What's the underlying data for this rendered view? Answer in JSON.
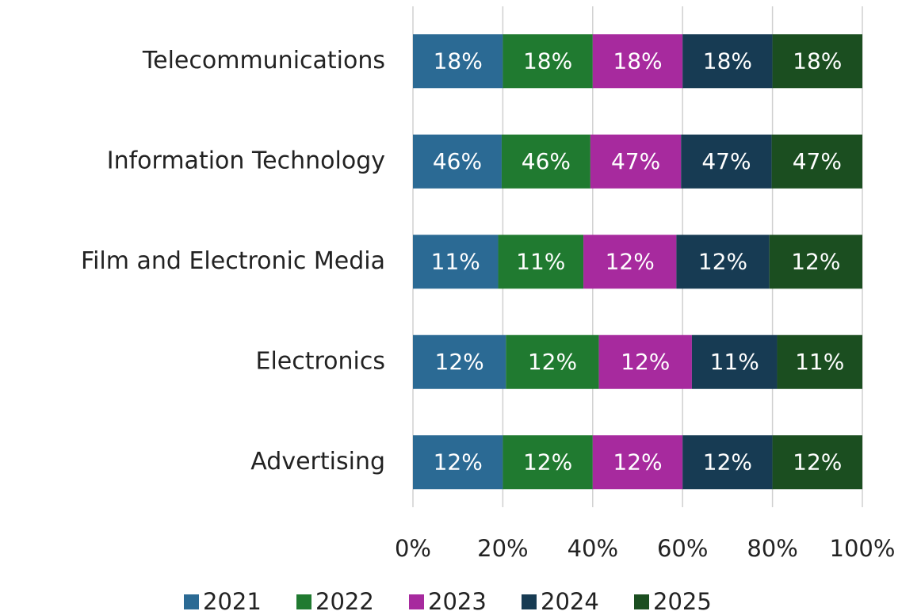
{
  "chart_data": {
    "type": "bar",
    "orientation": "horizontal",
    "stacking": "percent",
    "categories": [
      "Telecommunications",
      "Information Technology",
      "Film and Electronic Media",
      "Electronics",
      "Advertising"
    ],
    "series": [
      {
        "name": "2021",
        "color": "#2b6a94",
        "values": [
          18,
          46,
          11,
          12,
          12
        ],
        "value_labels": [
          "18%",
          "46%",
          "11%",
          "12%",
          "12%"
        ]
      },
      {
        "name": "2022",
        "color": "#207a30",
        "values": [
          18,
          46,
          11,
          12,
          12
        ],
        "value_labels": [
          "18%",
          "46%",
          "11%",
          "12%",
          "12%"
        ]
      },
      {
        "name": "2023",
        "color": "#a72a9e",
        "values": [
          18,
          47,
          12,
          12,
          12
        ],
        "value_labels": [
          "18%",
          "47%",
          "12%",
          "12%",
          "12%"
        ]
      },
      {
        "name": "2024",
        "color": "#173b53",
        "values": [
          18,
          47,
          12,
          11,
          12
        ],
        "value_labels": [
          "18%",
          "47%",
          "12%",
          "11%",
          "12%"
        ]
      },
      {
        "name": "2025",
        "color": "#1b4e20",
        "values": [
          18,
          47,
          12,
          11,
          12
        ],
        "value_labels": [
          "18%",
          "47%",
          "12%",
          "11%",
          "12%"
        ]
      }
    ],
    "xlim": [
      0,
      100
    ],
    "xticks": [
      {
        "value": 0,
        "label": "0%"
      },
      {
        "value": 20,
        "label": "20%"
      },
      {
        "value": 40,
        "label": "40%"
      },
      {
        "value": 60,
        "label": "60%"
      },
      {
        "value": 80,
        "label": "80%"
      },
      {
        "value": 100,
        "label": "100%"
      }
    ],
    "grid": true,
    "legend": "bottom"
  }
}
